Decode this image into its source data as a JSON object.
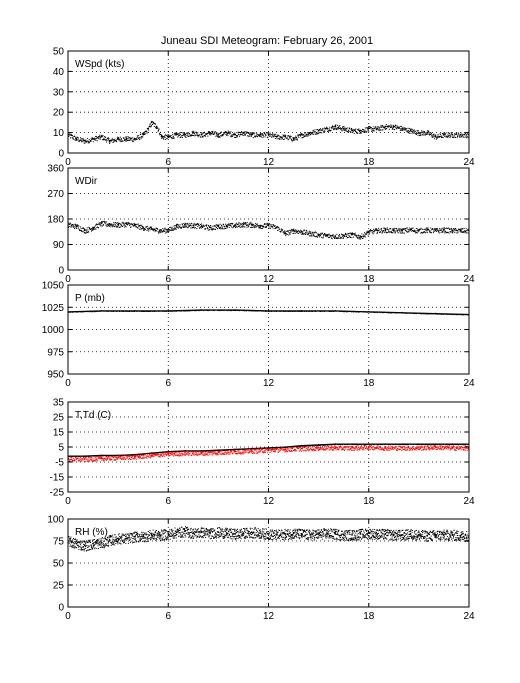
{
  "title": "Juneau SDI Meteogram:  February 26, 2001",
  "chart_data": [
    {
      "type": "scatter",
      "panel_label": "WSpd (kts)",
      "xlim": [
        0,
        24
      ],
      "ylim": [
        0,
        50
      ],
      "xticks": [
        0,
        6,
        12,
        18,
        24
      ],
      "yticks": [
        0,
        10,
        20,
        30,
        40,
        50
      ],
      "grid": true,
      "series": [
        {
          "color": "#000000",
          "style": "dots",
          "x": [
            0,
            0.5,
            1,
            1.5,
            2,
            2.5,
            3,
            3.5,
            4,
            4.5,
            4.8,
            5,
            5.3,
            5.6,
            6,
            6.5,
            7,
            7.5,
            8,
            8.5,
            9,
            9.5,
            10,
            10.5,
            11,
            11.5,
            12,
            12.5,
            13,
            13.5,
            14,
            14.5,
            15,
            15.5,
            16,
            16.5,
            17,
            17.5,
            18,
            18.5,
            19,
            19.5,
            20,
            20.5,
            21,
            21.5,
            22,
            22.5,
            23,
            23.5,
            24
          ],
          "y": [
            9,
            7,
            6,
            7,
            8,
            6,
            7,
            7,
            7,
            9,
            12,
            15,
            13,
            8,
            8,
            9,
            9,
            10,
            9,
            10,
            9,
            10,
            9,
            10,
            9,
            9,
            9,
            8,
            8,
            7,
            9,
            10,
            11,
            12,
            13,
            12,
            11,
            11,
            12,
            12,
            13,
            13,
            12,
            11,
            10,
            10,
            8,
            9,
            9,
            9,
            9
          ]
        }
      ]
    },
    {
      "type": "scatter",
      "panel_label": "WDir",
      "xlim": [
        0,
        24
      ],
      "ylim": [
        0,
        360
      ],
      "xticks": [
        0,
        6,
        12,
        18,
        24
      ],
      "yticks": [
        0,
        90,
        180,
        270,
        360
      ],
      "grid": true,
      "series": [
        {
          "color": "#000000",
          "style": "dots",
          "x": [
            0,
            0.5,
            1,
            1.5,
            2,
            2.5,
            3,
            3.5,
            4,
            4.5,
            5,
            5.5,
            6,
            6.5,
            7,
            7.5,
            8,
            8.5,
            9,
            9.5,
            10,
            10.5,
            11,
            11.5,
            12,
            12.5,
            13,
            13.5,
            14,
            14.5,
            15,
            15.5,
            16,
            16.5,
            17,
            17.5,
            18,
            18.5,
            19,
            19.5,
            20,
            20.5,
            21,
            21.5,
            22,
            22.5,
            23,
            23.5,
            24
          ],
          "y": [
            160,
            155,
            140,
            150,
            165,
            162,
            160,
            163,
            158,
            150,
            145,
            140,
            142,
            155,
            160,
            158,
            155,
            150,
            155,
            157,
            158,
            162,
            160,
            157,
            158,
            150,
            130,
            140,
            135,
            130,
            125,
            122,
            120,
            122,
            125,
            118,
            135,
            140,
            142,
            140,
            140,
            143,
            140,
            142,
            140,
            142,
            140,
            140,
            140
          ]
        }
      ]
    },
    {
      "type": "line",
      "panel_label": "P (mb)",
      "xlim": [
        0,
        24
      ],
      "ylim": [
        950,
        1050
      ],
      "xticks": [
        0,
        6,
        12,
        18,
        24
      ],
      "yticks": [
        950,
        975,
        1000,
        1025,
        1050
      ],
      "grid": true,
      "series": [
        {
          "color": "#000000",
          "style": "line",
          "x": [
            0,
            2,
            4,
            6,
            8,
            10,
            12,
            14,
            16,
            18,
            20,
            22,
            24
          ],
          "y": [
            1020,
            1021,
            1021,
            1021,
            1022,
            1022,
            1021,
            1021,
            1021,
            1020,
            1019,
            1018,
            1017
          ]
        }
      ]
    },
    {
      "type": "line",
      "panel_label": "T,Td (C)",
      "xlim": [
        0,
        24
      ],
      "ylim": [
        -25,
        35
      ],
      "xticks": [
        0,
        6,
        12,
        18,
        24
      ],
      "yticks": [
        -25,
        -15,
        -5,
        5,
        15,
        25,
        35
      ],
      "grid": true,
      "series": [
        {
          "color": "#000000",
          "style": "line",
          "x": [
            0,
            1,
            2,
            3,
            4,
            5,
            6,
            7,
            8,
            9,
            10,
            11,
            12,
            13,
            14,
            15,
            16,
            17,
            18,
            19,
            20,
            21,
            22,
            23,
            24
          ],
          "y": [
            -1,
            -1,
            -0.5,
            -0.5,
            0,
            1,
            2,
            2.5,
            2.5,
            3,
            3.5,
            4,
            4.5,
            5,
            6,
            6.5,
            7,
            7,
            7,
            7,
            7,
            7,
            7,
            7,
            7
          ]
        },
        {
          "color": "#ff0000",
          "style": "dots",
          "x": [
            0,
            1,
            2,
            3,
            4,
            5,
            6,
            7,
            8,
            9,
            10,
            11,
            12,
            13,
            14,
            15,
            16,
            17,
            18,
            19,
            20,
            21,
            22,
            23,
            24
          ],
          "y": [
            -3,
            -3,
            -2.5,
            -2,
            -1.5,
            -0.5,
            0.5,
            1,
            1,
            1.5,
            2,
            2.5,
            3,
            3.5,
            4,
            4.5,
            4.5,
            4.5,
            5,
            4.5,
            4.5,
            4.5,
            5,
            4.5,
            4.5
          ]
        }
      ]
    },
    {
      "type": "scatter",
      "panel_label": "RH (%)",
      "xlim": [
        0,
        24
      ],
      "ylim": [
        0,
        100
      ],
      "xticks": [
        0,
        6,
        12,
        18,
        24
      ],
      "yticks": [
        0,
        25,
        50,
        75,
        100
      ],
      "grid": true,
      "series": [
        {
          "color": "#000000",
          "style": "dots",
          "x": [
            0,
            0.5,
            1,
            1.5,
            2,
            2.5,
            3,
            3.5,
            4,
            4.5,
            5,
            5.5,
            6,
            6.5,
            7,
            7.5,
            8,
            8.5,
            9,
            9.5,
            10,
            10.5,
            11,
            11.5,
            12,
            12.5,
            13,
            13.5,
            14,
            14.5,
            15,
            15.5,
            16,
            16.5,
            17,
            17.5,
            18,
            18.5,
            19,
            19.5,
            20,
            20.5,
            21,
            21.5,
            22,
            22.5,
            23,
            23.5,
            24
          ],
          "y": [
            75,
            72,
            70,
            72,
            73,
            76,
            78,
            78,
            80,
            80,
            82,
            82,
            83,
            85,
            86,
            84,
            85,
            84,
            85,
            84,
            83,
            84,
            85,
            84,
            83,
            82,
            83,
            84,
            83,
            82,
            83,
            84,
            83,
            82,
            82,
            83,
            84,
            83,
            83,
            82,
            82,
            83,
            82,
            81,
            82,
            82,
            82,
            81,
            81
          ]
        }
      ]
    }
  ]
}
